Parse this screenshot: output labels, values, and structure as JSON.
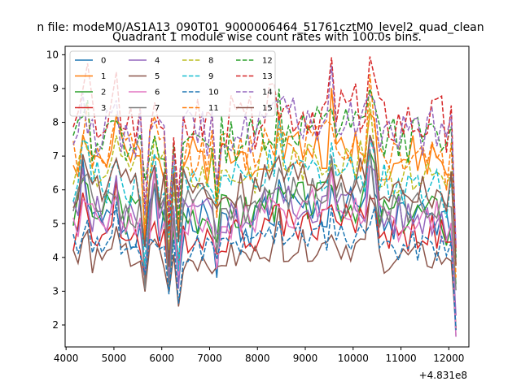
{
  "chart_data": {
    "type": "line",
    "suptitle": "n file: modeM0/AS1A13_090T01_9000006464_51761cztM0_level2_quad_clean",
    "title": "Quadrant 1 module wise count rates with 100.0s bins.",
    "xlabel": "",
    "ylabel": "",
    "x_offset_label": "+4.831e8",
    "xlim": [
      3980,
      12420
    ],
    "ylim": [
      1.35,
      10.25
    ],
    "x_ticks": [
      4000,
      5000,
      6000,
      7000,
      8000,
      9000,
      10000,
      11000,
      12000
    ],
    "y_ticks": [
      2,
      3,
      4,
      5,
      6,
      7,
      8,
      9,
      10
    ],
    "grid": false,
    "legend_position": "top-left",
    "legend_columns": 4,
    "x": [
      4150,
      4250,
      4350,
      4450,
      4550,
      4650,
      4750,
      4850,
      4950,
      5050,
      5150,
      5250,
      5350,
      5450,
      5550,
      5650,
      5750,
      5850,
      5950,
      6050,
      6150,
      6250,
      6350,
      6450,
      6550,
      6650,
      6750,
      6850,
      6950,
      7050,
      7150,
      7250,
      7350,
      7450,
      7550,
      7650,
      7750,
      7850,
      7950,
      8050,
      8150,
      8250,
      8350,
      8450,
      8550,
      8650,
      8750,
      8850,
      8950,
      9050,
      9150,
      9250,
      9350,
      9450,
      9550,
      9650,
      9750,
      9850,
      9950,
      10050,
      10150,
      10250,
      10350,
      10450,
      10550,
      10650,
      10750,
      10850,
      10950,
      11050,
      11150,
      11250,
      11350,
      11450,
      11550,
      11650,
      11750,
      11850,
      11950,
      12050,
      12150
    ],
    "series": [
      {
        "name": "0",
        "color": "#1f77b4",
        "dash": "solid",
        "base": 5.0,
        "amp": 0.9,
        "seed": 1
      },
      {
        "name": "1",
        "color": "#ff7f0e",
        "dash": "solid",
        "base": 6.9,
        "amp": 0.9,
        "seed": 2
      },
      {
        "name": "2",
        "color": "#2ca02c",
        "dash": "solid",
        "base": 5.3,
        "amp": 0.8,
        "seed": 3
      },
      {
        "name": "3",
        "color": "#d62728",
        "dash": "solid",
        "base": 4.7,
        "amp": 0.7,
        "seed": 4
      },
      {
        "name": "4",
        "color": "#9467bd",
        "dash": "solid",
        "base": 5.2,
        "amp": 0.8,
        "seed": 5
      },
      {
        "name": "5",
        "color": "#8c564b",
        "dash": "solid",
        "base": 4.0,
        "amp": 0.6,
        "seed": 6
      },
      {
        "name": "6",
        "color": "#e377c2",
        "dash": "solid",
        "base": 5.1,
        "amp": 0.8,
        "seed": 7
      },
      {
        "name": "7",
        "color": "#7f7f7f",
        "dash": "solid",
        "base": 5.5,
        "amp": 0.8,
        "seed": 8
      },
      {
        "name": "8",
        "color": "#bcbd22",
        "dash": "dashed",
        "base": 6.5,
        "amp": 0.8,
        "seed": 9
      },
      {
        "name": "9",
        "color": "#17becf",
        "dash": "dashed",
        "base": 6.2,
        "amp": 0.8,
        "seed": 10
      },
      {
        "name": "10",
        "color": "#1f77b4",
        "dash": "dashed",
        "base": 4.3,
        "amp": 0.6,
        "seed": 11
      },
      {
        "name": "11",
        "color": "#ff7f0e",
        "dash": "dashed",
        "base": 7.1,
        "amp": 0.9,
        "seed": 12
      },
      {
        "name": "12",
        "color": "#2ca02c",
        "dash": "dashed",
        "base": 7.5,
        "amp": 0.9,
        "seed": 13
      },
      {
        "name": "13",
        "color": "#d62728",
        "dash": "dashed",
        "base": 8.0,
        "amp": 1.0,
        "seed": 14
      },
      {
        "name": "14",
        "color": "#9467bd",
        "dash": "dashed",
        "base": 7.7,
        "amp": 0.9,
        "seed": 15
      },
      {
        "name": "15",
        "color": "#8c564b",
        "dash": "solid",
        "base": 6.0,
        "amp": 0.8,
        "seed": 16
      }
    ]
  }
}
